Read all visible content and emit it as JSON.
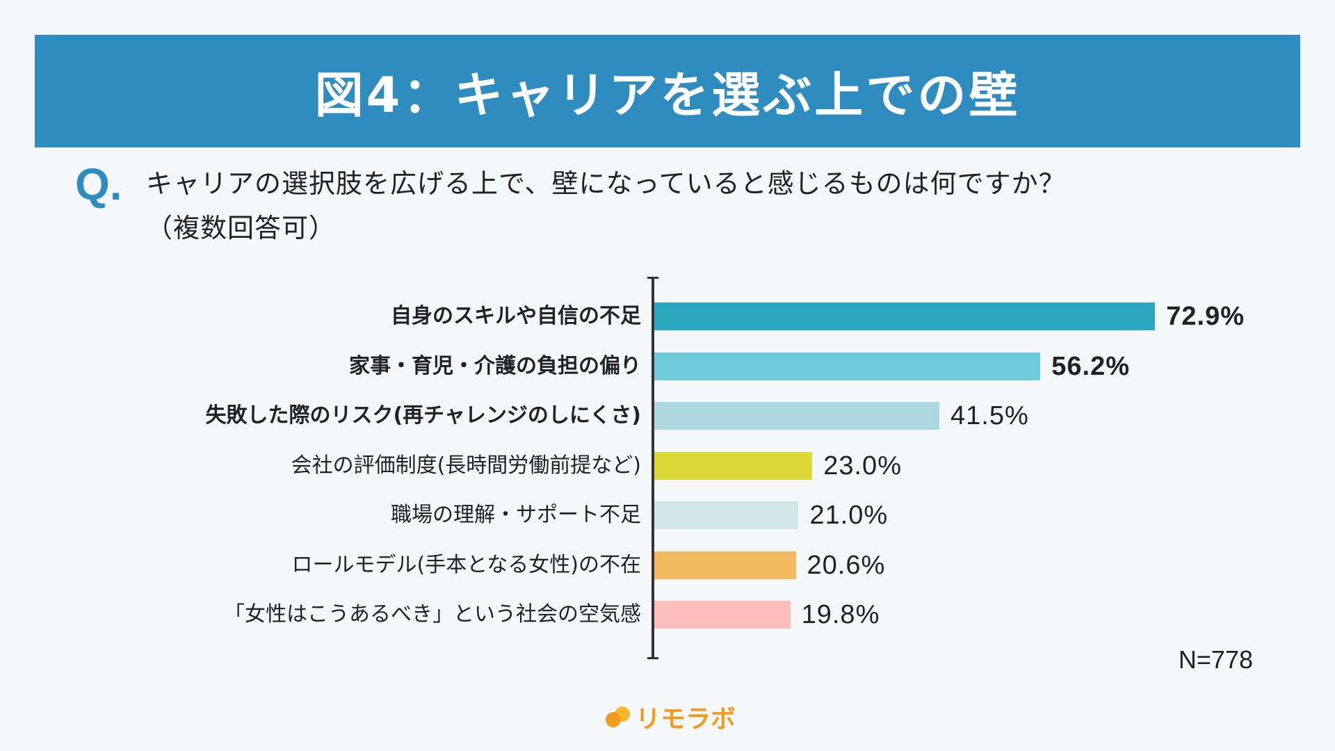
{
  "title": "図4：キャリアを選ぶ上での壁",
  "question": {
    "mark": "Q.",
    "line1": "キャリアの選択肢を広げる上で、壁になっていると感じるものは何ですか？",
    "line2": "（複数回答可）"
  },
  "chart_data": {
    "type": "bar",
    "orientation": "horizontal",
    "categories": [
      "自身のスキルや自信の不足",
      "家事・育児・介護の負担の偏り",
      "失敗した際のリスク(再チャレンジのしにくさ)",
      "会社の評価制度(長時間労働前提など)",
      "職場の理解・サポート不足",
      "ロールモデル(手本となる女性)の不在",
      "「女性はこうあるべき」という社会の空気感"
    ],
    "values": [
      72.9,
      56.2,
      41.5,
      23.0,
      21.0,
      20.6,
      19.8
    ],
    "value_labels": [
      "72.9%",
      "56.2%",
      "41.5%",
      "23.0%",
      "21.0%",
      "20.6%",
      "19.8%"
    ],
    "bold": [
      true,
      true,
      true,
      false,
      false,
      false,
      false
    ],
    "colors": [
      "#2aa6bf",
      "#6fcadb",
      "#aed8df",
      "#d9d838",
      "#d3e6ea",
      "#f3b862",
      "#fdbcbc"
    ],
    "xlim": [
      0,
      100
    ],
    "unit": "%",
    "grid": false,
    "note": "N=778"
  },
  "logo": {
    "text": "リモラボ",
    "colors": [
      "#f39a1e",
      "#f7b733"
    ]
  }
}
